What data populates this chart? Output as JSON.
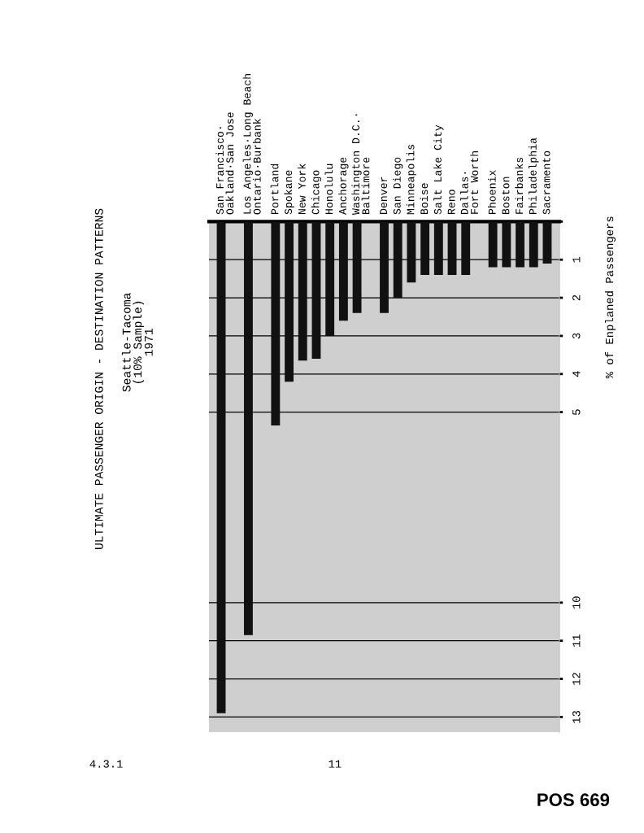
{
  "chart_data": {
    "type": "bar",
    "title": "ULTIMATE PASSENGER ORIGIN - DESTINATION PATTERNS",
    "subtitle": "Seattle-Tacoma\n(10% Sample)\n1971",
    "ylabel": "% of Enplaned Passengers",
    "categories": [
      "San Francisco·\nOakland·San Jose",
      null,
      "Los Angeles·Long Beach\nOntario·Burbank",
      null,
      "Portland",
      "Spokane",
      "New York",
      "Chicago",
      "Honolulu",
      "Anchorage",
      "Washington D.C.·\nBaltimore",
      null,
      "Denver",
      "San Diego",
      "Minneapolis",
      "Boise",
      "Salt Lake City",
      "Reno",
      "Dallas·\nFort Worth",
      null,
      "Phoenix",
      "Boston",
      "Fairbanks",
      "Philadelphia",
      "Sacramento"
    ],
    "values": [
      12.9,
      null,
      10.85,
      null,
      5.35,
      4.2,
      3.65,
      3.6,
      3.0,
      2.6,
      2.4,
      null,
      2.4,
      2.0,
      1.6,
      1.4,
      1.4,
      1.4,
      1.4,
      null,
      1.2,
      1.2,
      1.2,
      1.2,
      1.1
    ],
    "color": "#111111",
    "ylim": [
      13.4,
      0
    ],
    "yticks": [
      {
        "value": 0,
        "label": null
      },
      1,
      2,
      3,
      4,
      5,
      10,
      11,
      12,
      13
    ],
    "grid": "y",
    "annotations": [
      "4.3.1",
      "11",
      "POS 669"
    ]
  }
}
